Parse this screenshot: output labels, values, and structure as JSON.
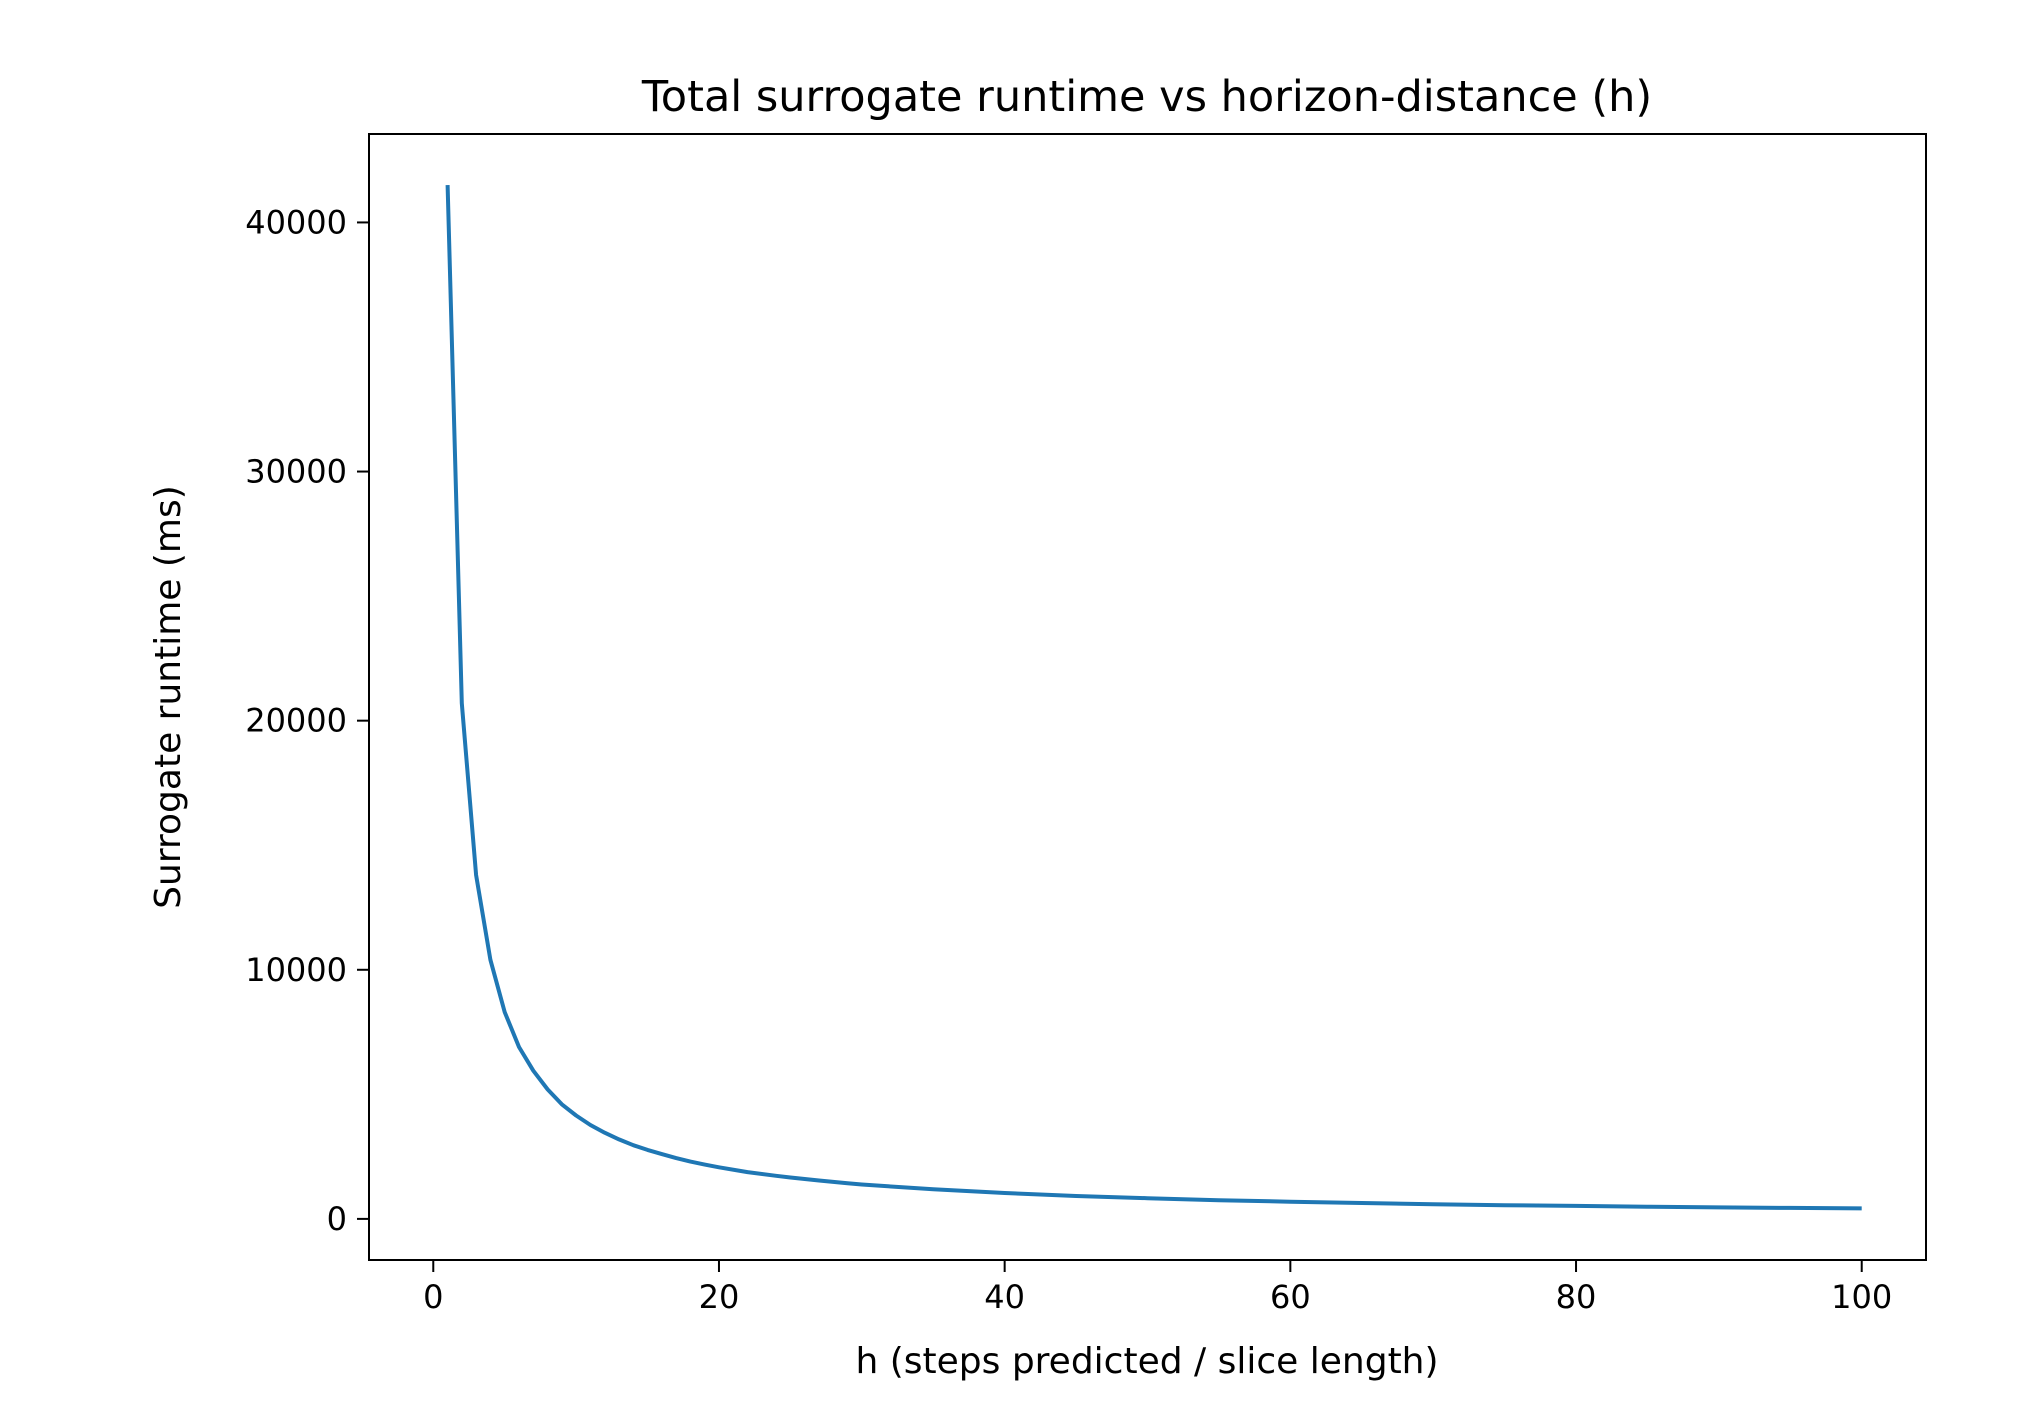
{
  "chart_data": {
    "type": "line",
    "title": "Total surrogate runtime vs horizon-distance (h)",
    "xlabel": "h (steps predicted / slice length)",
    "ylabel": "Surrogate runtime (ms)",
    "xlim": [
      -4.5,
      104.5
    ],
    "ylim": [
      -1650,
      43550
    ],
    "x_ticks": [
      0,
      20,
      40,
      60,
      80,
      100
    ],
    "x_tick_labels": [
      "0",
      "20",
      "40",
      "60",
      "80",
      "100"
    ],
    "y_ticks": [
      0,
      10000,
      20000,
      30000,
      40000
    ],
    "y_tick_labels": [
      "0",
      "10000",
      "20000",
      "30000",
      "40000"
    ],
    "grid": false,
    "legend": "none",
    "series": [
      {
        "color": "#1f77b4",
        "x": [
          1,
          2,
          3,
          4,
          5,
          6,
          7,
          8,
          9,
          10,
          11,
          12,
          13,
          14,
          15,
          16,
          17,
          18,
          19,
          20,
          22,
          24,
          25,
          27,
          29,
          30,
          35,
          40,
          45,
          50,
          55,
          60,
          65,
          70,
          75,
          80,
          85,
          90,
          95,
          100
        ],
        "y": [
          41500,
          20700,
          13800,
          10400,
          8300,
          6900,
          5950,
          5200,
          4600,
          4150,
          3770,
          3460,
          3190,
          2960,
          2770,
          2600,
          2440,
          2300,
          2180,
          2070,
          1880,
          1730,
          1660,
          1540,
          1430,
          1380,
          1190,
          1040,
          920,
          830,
          750,
          690,
          640,
          590,
          550,
          520,
          490,
          460,
          440,
          420
        ]
      }
    ]
  }
}
